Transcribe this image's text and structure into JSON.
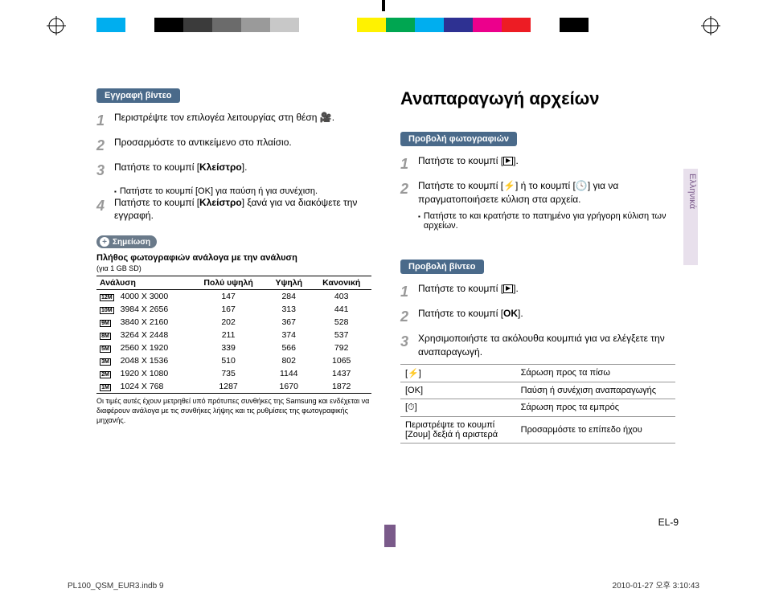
{
  "colorBar": [
    "#ffffff",
    "#00aeef",
    "#ffffff",
    "#000000",
    "#3b3b3b",
    "#6b6b6b",
    "#9a9a9a",
    "#c8c8c8",
    "#ffffff",
    "#ffffff",
    "#fff200",
    "#00a651",
    "#00aeef",
    "#2e3192",
    "#ec008c",
    "#ed1c24",
    "#ffffff",
    "#000000",
    "#ffffff"
  ],
  "mainTitle": "Αναπαραγωγή αρχείων",
  "langTab": "Ελληνικά",
  "pageNumber": "EL-9",
  "footerLeft": "PL100_QSM_EUR3.indb   9",
  "footerRight": "2010-01-27   오후 3:10:43",
  "left": {
    "tag": "Εγγραφή βίντεο",
    "steps": [
      {
        "n": "1",
        "text": "Περιστρέψτε τον επιλογέα λειτουργίας στη θέση ",
        "icon": "🎬",
        "tail": "."
      },
      {
        "n": "2",
        "text": "Προσαρμόστε το αντικείμενο στο πλαίσιο."
      },
      {
        "n": "3",
        "text": "Πατήστε το κουμπί [",
        "bold": "Κλείστρο",
        "tail": "]."
      },
      {
        "n": "4",
        "text": "Πατήστε το κουμπί [",
        "bold": "Κλείστρο",
        "tail": "] ξανά για να διακόψετε την εγγραφή."
      }
    ],
    "sub3": "Πατήστε το κουμπί [OK] για παύση ή για συνέχιση.",
    "noteTag": "Σημείωση",
    "tableTitle": "Πλήθος φωτογραφιών ανάλογα με την ανάλυση",
    "tableSubtitle": "(για 1 GB SD)",
    "headers": [
      "Ανάλυση",
      "Πολύ υψηλή",
      "Υψηλή",
      "Κανονική"
    ],
    "rows": [
      {
        "badge": "12M",
        "res": "4000 X 3000",
        "a": "147",
        "b": "284",
        "c": "403"
      },
      {
        "badge": "10M",
        "res": "3984 X 2656",
        "a": "167",
        "b": "313",
        "c": "441"
      },
      {
        "badge": "9M",
        "res": "3840 X 2160",
        "a": "202",
        "b": "367",
        "c": "528"
      },
      {
        "badge": "8M",
        "res": "3264 X 2448",
        "a": "211",
        "b": "374",
        "c": "537"
      },
      {
        "badge": "5M",
        "res": "2560 X 1920",
        "a": "339",
        "b": "566",
        "c": "792"
      },
      {
        "badge": "3M",
        "res": "2048 X 1536",
        "a": "510",
        "b": "802",
        "c": "1065"
      },
      {
        "badge": "2M",
        "res": "1920 X 1080",
        "a": "735",
        "b": "1144",
        "c": "1437"
      },
      {
        "badge": "1M",
        "res": "1024 X 768",
        "a": "1287",
        "b": "1670",
        "c": "1872"
      }
    ],
    "footnote": "Οι τιμές αυτές έχουν μετρηθεί υπό πρότυπες συνθήκες της Samsung και ενδέχεται να διαφέρουν ανάλογα με τις συνθήκες λήψης και τις ρυθμίσεις της φωτογραφικής μηχανής."
  },
  "rightTop": {
    "tag": "Προβολή φωτογραφιών",
    "steps": [
      {
        "n": "1",
        "text": "Πατήστε το κουμπί [",
        "icon": "▶",
        "tail": "]."
      },
      {
        "n": "2",
        "text": "Πατήστε το κουμπί [",
        "icon": "⚡",
        "tail2": "] ή το κουμπί [",
        "icon2": "⏱",
        "tail3": "] για να πραγματοποιήσετε κύλιση στα αρχεία."
      }
    ],
    "sub": "Πατήστε το και κρατήστε το πατημένο για γρήγορη κύλιση των αρχείων."
  },
  "rightBottom": {
    "tag": "Προβολή βίντεο",
    "steps": [
      {
        "n": "1",
        "text": "Πατήστε το κουμπί [",
        "icon": "▶",
        "tail": "]."
      },
      {
        "n": "2",
        "text": "Πατήστε το κουμπί [",
        "ok": "OK",
        "tail": "]."
      },
      {
        "n": "3",
        "text": "Χρησιμοποιήστε τα ακόλουθα κουμπιά για να ελέγξετε την αναπαραγωγή."
      }
    ],
    "controls": [
      {
        "k": "[⚡]",
        "v": "Σάρωση προς τα πίσω"
      },
      {
        "k": "[OK]",
        "v": "Παύση ή συνέχιση αναπαραγωγής"
      },
      {
        "k": "[⏱]",
        "v": "Σάρωση προς τα εμπρός"
      },
      {
        "k": "Περιστρέψτε το κουμπί [Ζουμ] δεξιά ή αριστερά",
        "v": "Προσαρμόστε το επίπεδο ήχου"
      }
    ]
  }
}
